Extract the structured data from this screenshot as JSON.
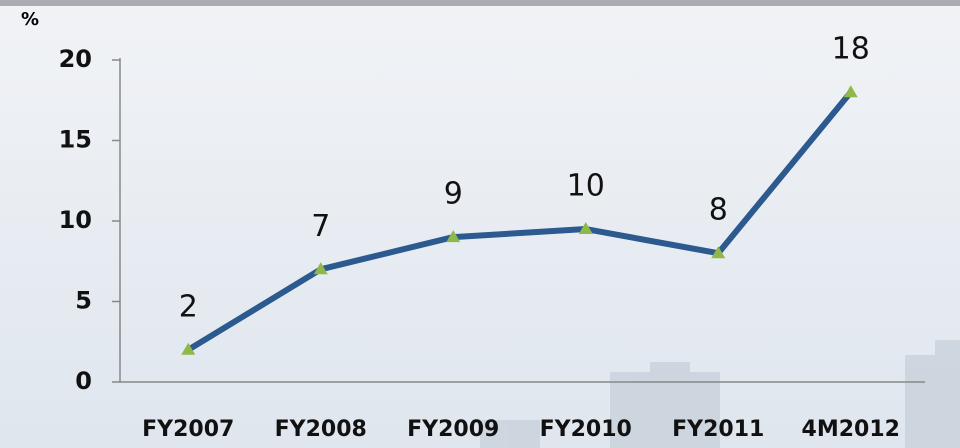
{
  "chart_data": {
    "type": "line",
    "y_label": "%",
    "categories": [
      "FY2007",
      "FY2008",
      "FY2009",
      "FY2010",
      "FY2011",
      "4M2012"
    ],
    "series": [
      {
        "color": "#2c5a8f",
        "marker_color": "#8fb84a",
        "values": [
          2,
          7,
          9,
          9.5,
          8,
          18
        ],
        "value_labels": [
          "2",
          "7",
          "9",
          "10",
          "8",
          "18"
        ]
      }
    ],
    "ylim": [
      0,
      20
    ],
    "yticks": [
      0,
      5,
      10,
      15,
      20
    ]
  }
}
